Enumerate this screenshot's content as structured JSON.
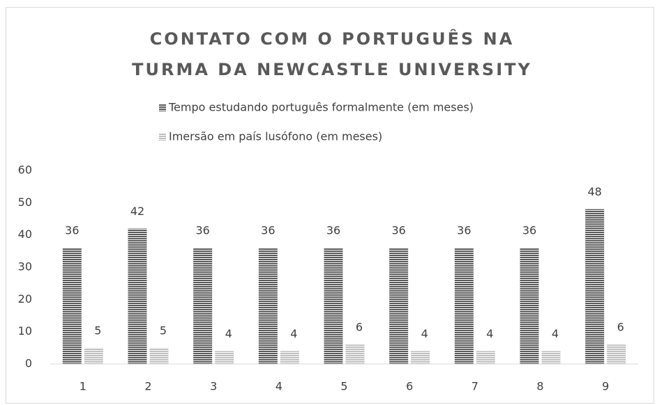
{
  "chart_data": {
    "type": "bar",
    "title": "CONTATO COM O PORTUGUÊS NA TURMA DA NEWCASTLE UNIVERSITY",
    "categories": [
      "1",
      "2",
      "3",
      "4",
      "5",
      "6",
      "7",
      "8",
      "9"
    ],
    "series": [
      {
        "name": "Tempo estudando português formalmente (em meses)",
        "color": "#595959",
        "values": [
          36,
          42,
          36,
          36,
          36,
          36,
          36,
          36,
          48
        ]
      },
      {
        "name": "Imersão em país lusófono (em meses)",
        "color": "#bfbfbf",
        "values": [
          5,
          5,
          4,
          4,
          6,
          4,
          4,
          4,
          6
        ]
      }
    ],
    "ylim": [
      0,
      60
    ],
    "yticks": [
      0,
      10,
      20,
      30,
      40,
      50,
      60
    ],
    "grid": false,
    "legend": "top"
  }
}
